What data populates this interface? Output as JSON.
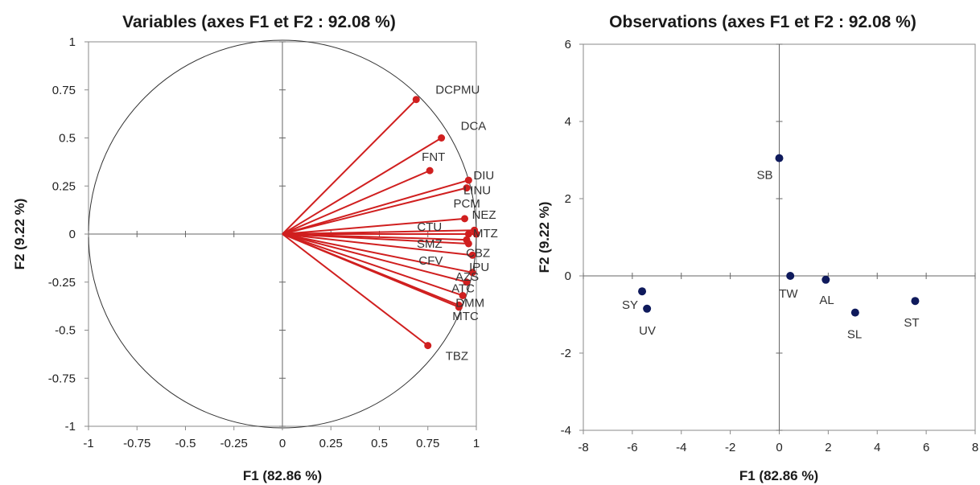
{
  "chart_data": [
    {
      "type": "scatter",
      "title": "Variables (axes F1 et F2 : 92.08 %)",
      "xlabel": "F1 (82.86 %)",
      "ylabel": "F2 (9.22 %)",
      "xlim": [
        -1,
        1
      ],
      "ylim": [
        -1,
        1
      ],
      "x_ticks": [
        "-1",
        "-0.75",
        "-0.5",
        "-0.25",
        "0",
        "0.25",
        "0.5",
        "0.75",
        "1"
      ],
      "y_ticks": [
        "1",
        "0.75",
        "0.5",
        "0.25",
        "0",
        "-0.25",
        "-0.5",
        "-0.75",
        "-1"
      ],
      "correlation_circle": true,
      "vector_color": "#d01f1f",
      "variables": [
        {
          "name": "DCPMU",
          "x": 0.69,
          "y": 0.7
        },
        {
          "name": "DCA",
          "x": 0.82,
          "y": 0.5
        },
        {
          "name": "FNT",
          "x": 0.76,
          "y": 0.33
        },
        {
          "name": "DIU",
          "x": 0.96,
          "y": 0.28
        },
        {
          "name": "LINU",
          "x": 0.95,
          "y": 0.24
        },
        {
          "name": "PCM",
          "x": 0.94,
          "y": 0.08
        },
        {
          "name": "NEZ",
          "x": 0.99,
          "y": 0.02
        },
        {
          "name": "CTU",
          "x": 0.96,
          "y": 0.0
        },
        {
          "name": "MTZ",
          "x": 1.0,
          "y": 0.0
        },
        {
          "name": "SMZ",
          "x": 0.95,
          "y": -0.03
        },
        {
          "name": "CFV",
          "x": 0.96,
          "y": -0.05
        },
        {
          "name": "CBZ",
          "x": 0.98,
          "y": -0.11
        },
        {
          "name": "IPU",
          "x": 0.98,
          "y": -0.2
        },
        {
          "name": "AZS",
          "x": 0.95,
          "y": -0.25
        },
        {
          "name": "ATC",
          "x": 0.93,
          "y": -0.32
        },
        {
          "name": "DMM",
          "x": 0.91,
          "y": -0.37
        },
        {
          "name": "MTC",
          "x": 0.91,
          "y": -0.38
        },
        {
          "name": "TBZ",
          "x": 0.75,
          "y": -0.58
        }
      ]
    },
    {
      "type": "scatter",
      "title": "Observations (axes F1 et F2 : 92.08 %)",
      "xlabel": "F1 (82.86 %)",
      "ylabel": "F2 (9.22 %)",
      "xlim": [
        -8,
        8
      ],
      "ylim": [
        -4,
        6
      ],
      "x_ticks": [
        "-8",
        "-6",
        "-4",
        "-2",
        "0",
        "2",
        "4",
        "6",
        "8"
      ],
      "y_ticks": [
        "6",
        "4",
        "2",
        "0",
        "-2",
        "-4"
      ],
      "point_color": "#0f1a5c",
      "points": [
        {
          "name": "SB",
          "x": 0.0,
          "y": 3.05
        },
        {
          "name": "TW",
          "x": 0.45,
          "y": 0.0
        },
        {
          "name": "AL",
          "x": 1.9,
          "y": -0.1
        },
        {
          "name": "SL",
          "x": 3.1,
          "y": -0.95
        },
        {
          "name": "ST",
          "x": 5.55,
          "y": -0.65
        },
        {
          "name": "SY",
          "x": -5.6,
          "y": -0.4
        },
        {
          "name": "UV",
          "x": -5.4,
          "y": -0.85
        }
      ]
    }
  ]
}
